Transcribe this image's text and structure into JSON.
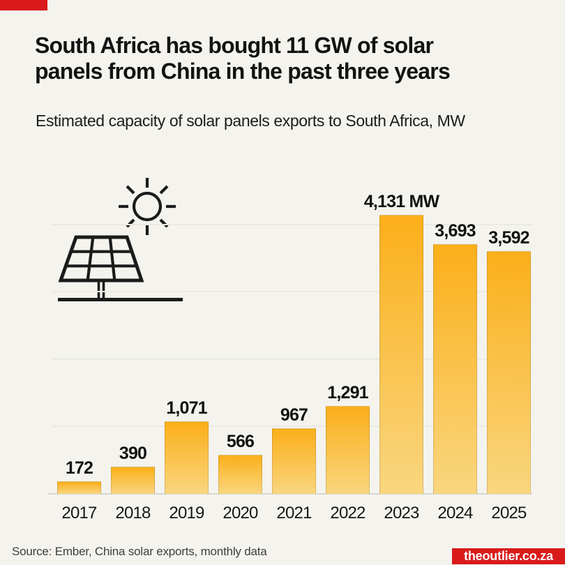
{
  "page": {
    "background": "#F4F3EE",
    "accent_red": "#D91A1A"
  },
  "header": {
    "title_line1": "South Africa has bought 11 GW of solar",
    "title_line2": "panels from China in the past three years",
    "subtitle": "Estimated capacity of solar panels exports to South Africa, MW"
  },
  "decoration": {
    "icon": "solar-panel-with-sun-icon",
    "icon_color": "#1b1b1b"
  },
  "chart_data": {
    "type": "bar",
    "title": "South Africa has bought 11 GW of solar panels from China in the past three years",
    "subtitle": "Estimated capacity of solar panels exports to South Africa, MW",
    "unit": "MW",
    "categories": [
      "2017",
      "2018",
      "2019",
      "2020",
      "2021",
      "2022",
      "2023",
      "2024",
      "2025"
    ],
    "values": [
      172,
      390,
      1071,
      566,
      967,
      1291,
      4131,
      3693,
      3592
    ],
    "value_labels": [
      "172",
      "390",
      "1,071",
      "566",
      "967",
      "1,291",
      "4,131 MW",
      "3,693",
      "3,592"
    ],
    "xlabel": "",
    "ylabel": "",
    "ylim": [
      0,
      4300
    ],
    "gridlines": [
      1000,
      2000,
      3000,
      4000
    ],
    "grid": "horizontal-unlabeled",
    "legend_position": "none",
    "bar_color_top": "#FBAF1A",
    "bar_color_bottom": "#F9D67F"
  },
  "footer": {
    "source": "Source: Ember, China solar exports, monthly data",
    "site": "theoutlier.co.za"
  }
}
